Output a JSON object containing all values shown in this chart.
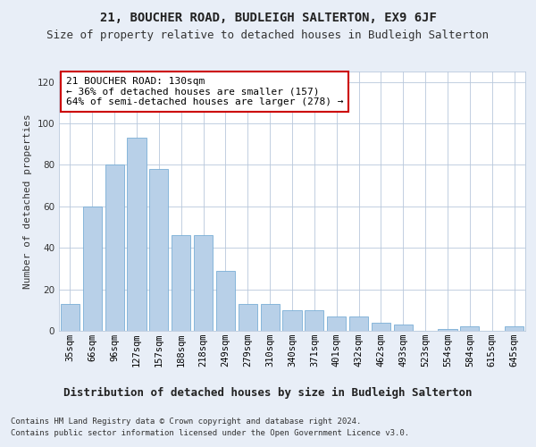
{
  "title1": "21, BOUCHER ROAD, BUDLEIGH SALTERTON, EX9 6JF",
  "title2": "Size of property relative to detached houses in Budleigh Salterton",
  "xlabel": "Distribution of detached houses by size in Budleigh Salterton",
  "ylabel": "Number of detached properties",
  "footnote1": "Contains HM Land Registry data © Crown copyright and database right 2024.",
  "footnote2": "Contains public sector information licensed under the Open Government Licence v3.0.",
  "annotation_line1": "21 BOUCHER ROAD: 130sqm",
  "annotation_line2": "← 36% of detached houses are smaller (157)",
  "annotation_line3": "64% of semi-detached houses are larger (278) →",
  "categories": [
    "35sqm",
    "66sqm",
    "96sqm",
    "127sqm",
    "157sqm",
    "188sqm",
    "218sqm",
    "249sqm",
    "279sqm",
    "310sqm",
    "340sqm",
    "371sqm",
    "401sqm",
    "432sqm",
    "462sqm",
    "493sqm",
    "523sqm",
    "554sqm",
    "584sqm",
    "615sqm",
    "645sqm"
  ],
  "values": [
    13,
    60,
    80,
    93,
    78,
    46,
    46,
    29,
    13,
    13,
    10,
    10,
    7,
    7,
    4,
    3,
    0,
    1,
    2,
    0,
    2
  ],
  "bar_color": "#b8d0e8",
  "bar_edgecolor": "#7aaed6",
  "ylim": [
    0,
    125
  ],
  "yticks": [
    0,
    20,
    40,
    60,
    80,
    100,
    120
  ],
  "bg_color": "#e8eef7",
  "plot_bg_color": "#ffffff",
  "annotation_box_facecolor": "#ffffff",
  "annotation_box_edgecolor": "#cc0000",
  "title1_fontsize": 10,
  "title2_fontsize": 9,
  "xlabel_fontsize": 9,
  "ylabel_fontsize": 8,
  "annotation_fontsize": 8,
  "tick_fontsize": 7.5,
  "footnote_fontsize": 6.5
}
